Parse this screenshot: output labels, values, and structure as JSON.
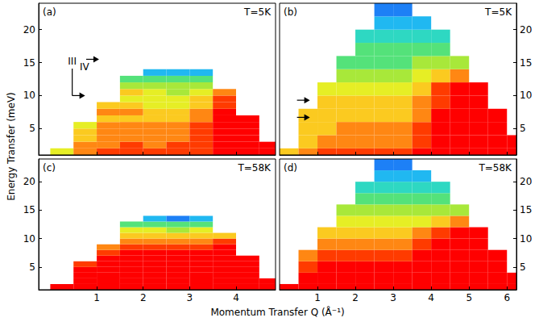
{
  "xlabel": "Momentum Transfer Q (Å⁻¹)",
  "ylabel": "Energy Transfer (meV)",
  "chart_data": [
    {
      "type": "heatmap",
      "panel": "(a)",
      "annotation": "T=5K",
      "xlim": [
        -0.25,
        4.85
      ],
      "ylim": [
        1,
        24
      ],
      "xticks": [
        1,
        2,
        3,
        4
      ],
      "yticks": [
        5,
        10,
        15,
        20
      ],
      "tick_labels": "y",
      "zlim": [
        0,
        10
      ],
      "x": [
        0.25,
        0.75,
        1.25,
        1.75,
        2.25,
        2.75,
        3.25,
        3.75,
        4.25,
        4.75
      ],
      "y": [
        1.5,
        2.5,
        3.5,
        4.5,
        5.5,
        6.5,
        7.5,
        8.5,
        9.5,
        10.5,
        11.5,
        12.5,
        13.5
      ],
      "z": [
        [
          6,
          8,
          9,
          9,
          9,
          9,
          9,
          10,
          10,
          10
        ],
        [
          null,
          8,
          8,
          9,
          8,
          9,
          9,
          10,
          10,
          10
        ],
        [
          null,
          7,
          8,
          8,
          8,
          8,
          9,
          10,
          10,
          null
        ],
        [
          null,
          7,
          8,
          8,
          8,
          8,
          9,
          10,
          10,
          null
        ],
        [
          null,
          6,
          8,
          8,
          8,
          8,
          9,
          10,
          10,
          null
        ],
        [
          null,
          null,
          7,
          7,
          7,
          7,
          8,
          10,
          10,
          null
        ],
        [
          null,
          null,
          8,
          8,
          7,
          7,
          8,
          10,
          null,
          null
        ],
        [
          null,
          null,
          7,
          7,
          6,
          6,
          7,
          9,
          null,
          null
        ],
        [
          null,
          null,
          null,
          6,
          6,
          6,
          7,
          9,
          null,
          null
        ],
        [
          null,
          null,
          null,
          7,
          6,
          5,
          6,
          8,
          null,
          null
        ],
        [
          null,
          null,
          null,
          5,
          5,
          5,
          5,
          null,
          null,
          null
        ],
        [
          null,
          null,
          null,
          4,
          4,
          4,
          4,
          null,
          null,
          null
        ],
        [
          null,
          null,
          null,
          null,
          2,
          2,
          2,
          null,
          null,
          null
        ]
      ],
      "arrows": [
        {
          "label": "III",
          "x": 0.75,
          "y": 10
        },
        {
          "label": "IV",
          "x": 1.05,
          "y": 15.5
        }
      ]
    },
    {
      "type": "heatmap",
      "panel": "(b)",
      "annotation": "T=5K",
      "xlim": [
        0,
        6.25
      ],
      "ylim": [
        1,
        24
      ],
      "xticks": [
        1,
        2,
        3,
        4,
        5,
        6
      ],
      "yticks": [
        5,
        10,
        15,
        20
      ],
      "tick_labels": "y",
      "zlim": [
        0,
        10
      ],
      "x": [
        0.25,
        0.75,
        1.25,
        1.75,
        2.25,
        2.75,
        3.25,
        3.75,
        4.25,
        4.75,
        5.25,
        5.75,
        6.25
      ],
      "y": [
        1,
        3,
        5,
        7,
        9,
        11,
        13,
        15,
        17,
        19,
        21,
        23
      ],
      "z": [
        [
          7,
          8,
          9,
          9,
          9,
          9,
          9,
          10,
          10,
          10,
          10,
          10,
          10
        ],
        [
          null,
          7,
          8,
          8,
          8,
          8,
          8,
          9,
          10,
          10,
          10,
          10,
          10
        ],
        [
          null,
          7,
          7,
          8,
          8,
          8,
          8,
          9,
          10,
          10,
          10,
          10,
          null
        ],
        [
          null,
          7,
          7,
          7,
          7,
          7,
          7,
          8,
          10,
          10,
          10,
          10,
          null
        ],
        [
          null,
          null,
          7,
          7,
          7,
          7,
          7,
          8,
          9,
          10,
          10,
          null,
          null
        ],
        [
          null,
          null,
          6,
          6,
          6,
          6,
          6,
          7,
          9,
          10,
          10,
          null,
          null
        ],
        [
          null,
          null,
          null,
          5,
          5,
          5,
          5,
          6,
          7,
          8,
          null,
          null,
          null
        ],
        [
          null,
          null,
          null,
          4,
          4,
          4,
          4,
          5,
          5,
          5,
          null,
          null,
          null
        ],
        [
          null,
          null,
          null,
          null,
          4,
          4,
          4,
          4,
          4,
          null,
          null,
          null,
          null
        ],
        [
          null,
          null,
          null,
          null,
          3,
          3,
          3,
          3,
          3,
          null,
          null,
          null,
          null
        ],
        [
          null,
          null,
          null,
          null,
          null,
          2,
          2,
          2,
          null,
          null,
          null,
          null,
          null
        ],
        [
          null,
          null,
          null,
          null,
          null,
          1,
          1,
          null,
          null,
          null,
          null,
          null,
          null
        ]
      ],
      "arrows": [
        {
          "x": 0.8,
          "y": 9.3
        },
        {
          "x": 0.8,
          "y": 6.7
        }
      ]
    },
    {
      "type": "heatmap",
      "panel": "(c)",
      "annotation": "T=58K",
      "xlim": [
        -0.25,
        4.85
      ],
      "ylim": [
        1,
        24
      ],
      "xticks": [
        1,
        2,
        3,
        4
      ],
      "yticks": [
        5,
        10,
        15,
        20
      ],
      "zlim": [
        0,
        10
      ],
      "x": [
        0.25,
        0.75,
        1.25,
        1.75,
        2.25,
        2.75,
        3.25,
        3.75,
        4.25,
        4.75
      ],
      "y": [
        1.5,
        2.5,
        3.5,
        4.5,
        5.5,
        6.5,
        7.5,
        8.5,
        9.5,
        10.5,
        11.5,
        12.5,
        13.5
      ],
      "z": [
        [
          10,
          10,
          10,
          10,
          10,
          10,
          10,
          10,
          10,
          10
        ],
        [
          null,
          10,
          10,
          10,
          10,
          10,
          10,
          10,
          10,
          10
        ],
        [
          null,
          10,
          10,
          10,
          10,
          10,
          10,
          10,
          10,
          null
        ],
        [
          null,
          10,
          10,
          10,
          10,
          10,
          10,
          10,
          10,
          null
        ],
        [
          null,
          9,
          10,
          10,
          10,
          10,
          10,
          10,
          10,
          null
        ],
        [
          null,
          null,
          10,
          10,
          10,
          10,
          10,
          10,
          10,
          null
        ],
        [
          null,
          null,
          9,
          10,
          10,
          10,
          10,
          10,
          null,
          null
        ],
        [
          null,
          null,
          8,
          9,
          9,
          9,
          9,
          10,
          null,
          null
        ],
        [
          null,
          null,
          null,
          8,
          8,
          8,
          8,
          9,
          null,
          null
        ],
        [
          null,
          null,
          null,
          7,
          7,
          7,
          7,
          7,
          null,
          null
        ],
        [
          null,
          null,
          null,
          6,
          6,
          5,
          6,
          null,
          null,
          null
        ],
        [
          null,
          null,
          null,
          4,
          4,
          4,
          4,
          null,
          null,
          null
        ],
        [
          null,
          null,
          null,
          null,
          2,
          1,
          2,
          null,
          null,
          null
        ]
      ]
    },
    {
      "type": "heatmap",
      "panel": "(d)",
      "annotation": "T=58K",
      "xlim": [
        0,
        6.25
      ],
      "ylim": [
        1,
        24
      ],
      "xticks": [
        1,
        2,
        3,
        4,
        5,
        6
      ],
      "yticks": [
        5,
        10,
        15,
        20
      ],
      "zlim": [
        0,
        10
      ],
      "x": [
        0.25,
        0.75,
        1.25,
        1.75,
        2.25,
        2.75,
        3.25,
        3.75,
        4.25,
        4.75,
        5.25,
        5.75,
        6.25
      ],
      "y": [
        1,
        3,
        5,
        7,
        9,
        11,
        13,
        15,
        17,
        19,
        21,
        23
      ],
      "z": [
        [
          10,
          10,
          10,
          10,
          10,
          10,
          10,
          10,
          10,
          10,
          10,
          10,
          10
        ],
        [
          null,
          10,
          10,
          10,
          10,
          10,
          10,
          10,
          10,
          10,
          10,
          10,
          10
        ],
        [
          null,
          9,
          10,
          10,
          10,
          10,
          10,
          10,
          10,
          10,
          10,
          10,
          null
        ],
        [
          null,
          8,
          9,
          9,
          9,
          9,
          9,
          10,
          10,
          10,
          10,
          10,
          null
        ],
        [
          null,
          null,
          8,
          8,
          8,
          8,
          8,
          9,
          10,
          10,
          10,
          null,
          null
        ],
        [
          null,
          null,
          7,
          7,
          7,
          7,
          7,
          8,
          9,
          10,
          10,
          null,
          null
        ],
        [
          null,
          null,
          null,
          6,
          6,
          6,
          6,
          6,
          7,
          8,
          null,
          null,
          null
        ],
        [
          null,
          null,
          null,
          5,
          5,
          5,
          5,
          5,
          5,
          5,
          null,
          null,
          null
        ],
        [
          null,
          null,
          null,
          null,
          4,
          4,
          4,
          4,
          4,
          null,
          null,
          null,
          null
        ],
        [
          null,
          null,
          null,
          null,
          3,
          3,
          3,
          3,
          3,
          null,
          null,
          null,
          null
        ],
        [
          null,
          null,
          null,
          null,
          null,
          2,
          2,
          2,
          null,
          null,
          null,
          null,
          null
        ],
        [
          null,
          null,
          null,
          null,
          null,
          1,
          1,
          null,
          null,
          null,
          null,
          null,
          null
        ]
      ]
    }
  ]
}
